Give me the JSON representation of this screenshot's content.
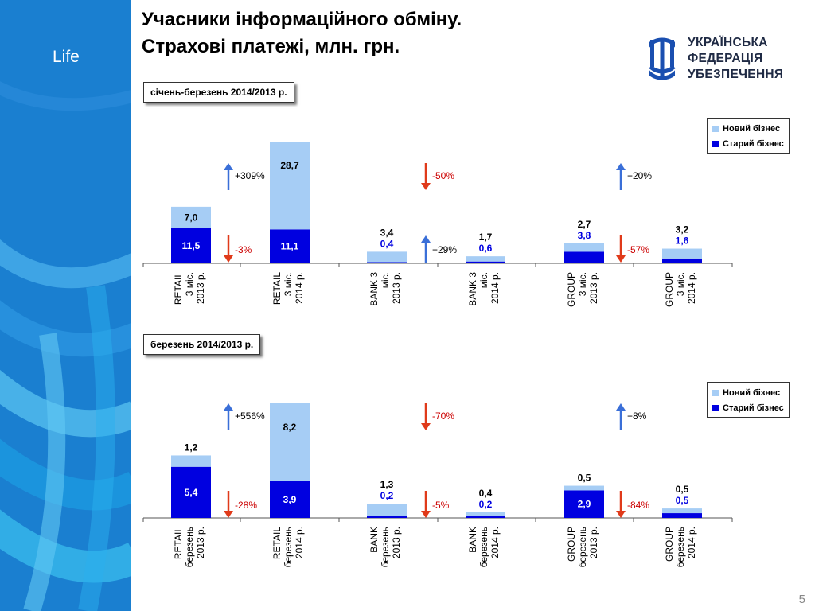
{
  "header": {
    "title_line1": "Учасники інформаційного обміну.",
    "title_line2": "Страхові платежі, млн. грн.",
    "sidebar_label": "Life",
    "page_number": "5",
    "logo_lines": [
      "УКРАЇНСЬКА",
      "ФЕДЕРАЦІЯ",
      "УБЕЗПЕЧЕННЯ"
    ]
  },
  "colors": {
    "new_business": "#a6cdf5",
    "old_business": "#0000e0",
    "up_arrow": "#3a6fd8",
    "down_arrow": "#e03a1a",
    "change_text": "#cc0000"
  },
  "chart_data": [
    {
      "type": "bar",
      "stacked": true,
      "period_label": "січень-березень 2014/2013 р.",
      "categories": [
        [
          "RETAIL",
          "3 міс.",
          "2013 р."
        ],
        [
          "RETAIL",
          "3 міс.",
          "2014 р."
        ],
        [
          "BANK 3",
          "міс.",
          "2013 р."
        ],
        [
          "BANK 3",
          "міс.",
          "2014 р."
        ],
        [
          "GROUP",
          "3 міс.",
          "2013 р."
        ],
        [
          "GROUP",
          "3 міс.",
          "2014 р."
        ]
      ],
      "series": [
        {
          "name": "Старий бізнес",
          "values": [
            11.5,
            11.1,
            0.4,
            0.6,
            3.8,
            1.6
          ],
          "labels": [
            "11,5",
            "11,1",
            "0,4",
            "0,6",
            "3,8",
            "1,6"
          ]
        },
        {
          "name": "Новий бізнес",
          "values": [
            7.0,
            28.7,
            3.4,
            1.7,
            2.7,
            3.2
          ],
          "labels": [
            "7,0",
            "28,7",
            "3,4",
            "1,7",
            "2,7",
            "3,2"
          ]
        }
      ],
      "changes": [
        {
          "text": "+309%",
          "dir": "up",
          "group": 0,
          "level": "high"
        },
        {
          "text": "-3%",
          "dir": "down",
          "group": 0,
          "level": "low"
        },
        {
          "text": "-50%",
          "dir": "down",
          "group": 1,
          "level": "high"
        },
        {
          "text": "+29%",
          "dir": "up",
          "group": 1,
          "level": "low"
        },
        {
          "text": "+20%",
          "dir": "up",
          "group": 2,
          "level": "high"
        },
        {
          "text": "-57%",
          "dir": "down",
          "group": 2,
          "level": "low"
        }
      ],
      "legend": [
        "Новий бізнес",
        "Старий бізнес"
      ]
    },
    {
      "type": "bar",
      "stacked": true,
      "period_label": "березень 2014/2013 р.",
      "categories": [
        [
          "RETAIL",
          "березень",
          "2013 р."
        ],
        [
          "RETAIL",
          "березень",
          "2014 р."
        ],
        [
          "BANK",
          "березень",
          "2013 р."
        ],
        [
          "BANK",
          "березень",
          "2014 р."
        ],
        [
          "GROUP",
          "березень",
          "2013 р."
        ],
        [
          "GROUP",
          "березень",
          "2014 р."
        ]
      ],
      "series": [
        {
          "name": "Старий бізнес",
          "values": [
            5.4,
            3.9,
            0.2,
            0.2,
            2.9,
            0.5
          ],
          "labels": [
            "5,4",
            "3,9",
            "0,2",
            "0,2",
            "2,9",
            "0,5"
          ]
        },
        {
          "name": "Новий бізнес",
          "values": [
            1.2,
            8.2,
            1.3,
            0.4,
            0.5,
            0.5
          ],
          "labels": [
            "1,2",
            "8,2",
            "1,3",
            "0,4",
            "0,5",
            "0,5"
          ]
        }
      ],
      "changes": [
        {
          "text": "+556%",
          "dir": "up",
          "group": 0,
          "level": "high"
        },
        {
          "text": "-28%",
          "dir": "down",
          "group": 0,
          "level": "low"
        },
        {
          "text": "-70%",
          "dir": "down",
          "group": 1,
          "level": "high"
        },
        {
          "text": "-5%",
          "dir": "down",
          "group": 1,
          "level": "low"
        },
        {
          "text": "+8%",
          "dir": "up",
          "group": 2,
          "level": "high"
        },
        {
          "text": "-84%",
          "dir": "down",
          "group": 2,
          "level": "low"
        }
      ],
      "legend": [
        "Новий бізнес",
        "Старий бізнес"
      ]
    }
  ]
}
